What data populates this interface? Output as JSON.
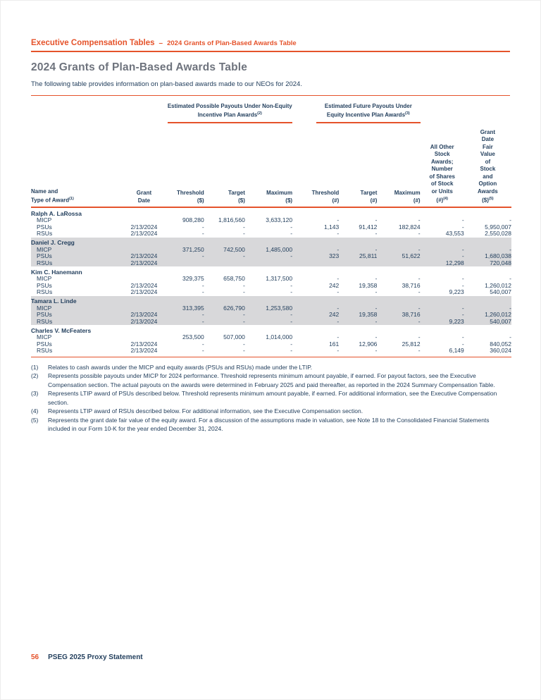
{
  "colors": {
    "accent_orange": "#e5532b",
    "navy_text": "#24405e",
    "title_gray": "#6e737d",
    "row_shade": "#d8d8da"
  },
  "breadcrumb": {
    "primary": "Executive Compensation Tables",
    "separator": "–",
    "secondary": "2024 Grants of Plan-Based Awards Table"
  },
  "title": "2024 Grants of Plan-Based Awards Table",
  "intro": "The following table provides information on plan-based awards made to our NEOs for 2024.",
  "table": {
    "group_headers": [
      {
        "label": "Estimated Possible Payouts Under Non-Equity Incentive Plan Awards",
        "sup": "(2)"
      },
      {
        "label": "Estimated Future Payouts Under Equity Incentive Plan Awards",
        "sup": "(3)"
      }
    ],
    "columns": [
      {
        "lines": [
          "Name and",
          "Type of Award"
        ],
        "sup": "(1)",
        "align": "left",
        "width": 135
      },
      {
        "lines": [
          "Grant",
          "Date"
        ],
        "sup": "",
        "align": "center",
        "width": 50
      },
      {
        "lines": [
          "Threshold",
          "($)"
        ],
        "sup": "",
        "align": "right",
        "width": 60
      },
      {
        "lines": [
          "Target",
          "($)"
        ],
        "sup": "",
        "align": "right",
        "width": 58
      },
      {
        "lines": [
          "Maximum",
          "($)"
        ],
        "sup": "",
        "align": "right",
        "width": 67
      },
      {
        "lines": [
          "Threshold",
          "(#)"
        ],
        "sup": "",
        "align": "right",
        "width": 66
      },
      {
        "lines": [
          "Target",
          "(#)"
        ],
        "sup": "",
        "align": "right",
        "width": 54
      },
      {
        "lines": [
          "Maximum",
          "(#)"
        ],
        "sup": "",
        "align": "right",
        "width": 61
      },
      {
        "lines": [
          "All Other",
          "Stock",
          "Awards;",
          "Number",
          "of Shares",
          "of Stock",
          "or Units",
          "(#)"
        ],
        "sup": "(4)",
        "align": "center",
        "width": 62
      },
      {
        "lines": [
          "Grant",
          "Date",
          "Fair",
          "Value",
          "of",
          "Stock",
          "and",
          "Option",
          "Awards",
          "($)"
        ],
        "sup": "(5)",
        "align": "center",
        "width": 67
      }
    ],
    "groups": [
      {
        "name": "Ralph A. LaRossa",
        "shaded": false,
        "rows": [
          {
            "type": "MICP",
            "grant_date": "",
            "cells": [
              "908,280",
              "1,816,560",
              "3,633,120",
              "-",
              "-",
              "-",
              "-",
              "-"
            ]
          },
          {
            "type": "PSUs",
            "grant_date": "2/13/2024",
            "cells": [
              "-",
              "-",
              "-",
              "1,143",
              "91,412",
              "182,824",
              "-",
              "5,950,007"
            ]
          },
          {
            "type": "RSUs",
            "grant_date": "2/13/2024",
            "cells": [
              "-",
              "-",
              "-",
              "-",
              "-",
              "-",
              "43,553",
              "2,550,028"
            ]
          }
        ]
      },
      {
        "name": "Daniel J. Cregg",
        "shaded": true,
        "rows": [
          {
            "type": "MICP",
            "grant_date": "",
            "cells": [
              "371,250",
              "742,500",
              "1,485,000",
              "-",
              "-",
              "-",
              "-",
              "-"
            ]
          },
          {
            "type": "PSUs",
            "grant_date": "2/13/2024",
            "cells": [
              "-",
              "-",
              "-",
              "323",
              "25,811",
              "51,622",
              "-",
              "1,680,038"
            ]
          },
          {
            "type": "RSUs",
            "grant_date": "2/13/2024",
            "cells": [
              "",
              "",
              "",
              "",
              "",
              "",
              "12,298",
              "720,048"
            ]
          }
        ]
      },
      {
        "name": "Kim C. Hanemann",
        "shaded": false,
        "rows": [
          {
            "type": "MICP",
            "grant_date": "",
            "cells": [
              "329,375",
              "658,750",
              "1,317,500",
              "-",
              "-",
              "-",
              "-",
              "-"
            ]
          },
          {
            "type": "PSUs",
            "grant_date": "2/13/2024",
            "cells": [
              "-",
              "-",
              "-",
              "242",
              "19,358",
              "38,716",
              "-",
              "1,260,012"
            ]
          },
          {
            "type": "RSUs",
            "grant_date": "2/13/2024",
            "cells": [
              "-",
              "-",
              "-",
              "-",
              "-",
              "-",
              "9,223",
              "540,007"
            ]
          }
        ]
      },
      {
        "name": "Tamara L. Linde",
        "shaded": true,
        "rows": [
          {
            "type": "MICP",
            "grant_date": "",
            "cells": [
              "313,395",
              "626,790",
              "1,253,580",
              "-",
              "-",
              "-",
              "-",
              "-"
            ]
          },
          {
            "type": "PSUs",
            "grant_date": "2/13/2024",
            "cells": [
              "-",
              "-",
              "-",
              "242",
              "19,358",
              "38,716",
              "-",
              "1,260,012"
            ]
          },
          {
            "type": "RSUs",
            "grant_date": "2/13/2024",
            "cells": [
              "-",
              "-",
              "-",
              "-",
              "-",
              "-",
              "9,223",
              "540,007"
            ]
          }
        ]
      },
      {
        "name": "Charles V. McFeaters",
        "shaded": false,
        "rows": [
          {
            "type": "MICP",
            "grant_date": "",
            "cells": [
              "253,500",
              "507,000",
              "1,014,000",
              "-",
              "-",
              "-",
              "-",
              "-"
            ]
          },
          {
            "type": "PSUs",
            "grant_date": "2/13/2024",
            "cells": [
              "-",
              "-",
              "-",
              "161",
              "12,906",
              "25,812",
              "-",
              "840,052"
            ]
          },
          {
            "type": "RSUs",
            "grant_date": "2/13/2024",
            "cells": [
              "-",
              "-",
              "-",
              "-",
              "-",
              "-",
              "6,149",
              "360,024"
            ]
          }
        ]
      }
    ]
  },
  "footnotes": [
    {
      "num": "(1)",
      "text": "Relates to cash awards under the MICP and equity awards (PSUs and RSUs) made under the LTIP."
    },
    {
      "num": "(2)",
      "text": "Represents possible payouts under MICP for 2024 performance. Threshold represents minimum amount payable, if earned. For payout factors, see the Executive Compensation section. The actual payouts on the awards were determined in February 2025 and paid thereafter, as reported in the 2024 Summary Compensation Table."
    },
    {
      "num": "(3)",
      "text": "Represents LTIP award of PSUs described below. Threshold represents minimum amount payable, if earned. For additional information, see the Executive Compensation section."
    },
    {
      "num": "(4)",
      "text": "Represents LTIP award of RSUs described below. For additional information, see the Executive Compensation section."
    },
    {
      "num": "(5)",
      "text": "Represents the grant date fair value of the equity award. For a discussion of the assumptions made in valuation, see Note 18 to the Consolidated Financial Statements included in our Form 10-K for the year ended December 31, 2024."
    }
  ],
  "footer": {
    "page_number": "56",
    "label": "PSEG 2025 Proxy Statement"
  }
}
